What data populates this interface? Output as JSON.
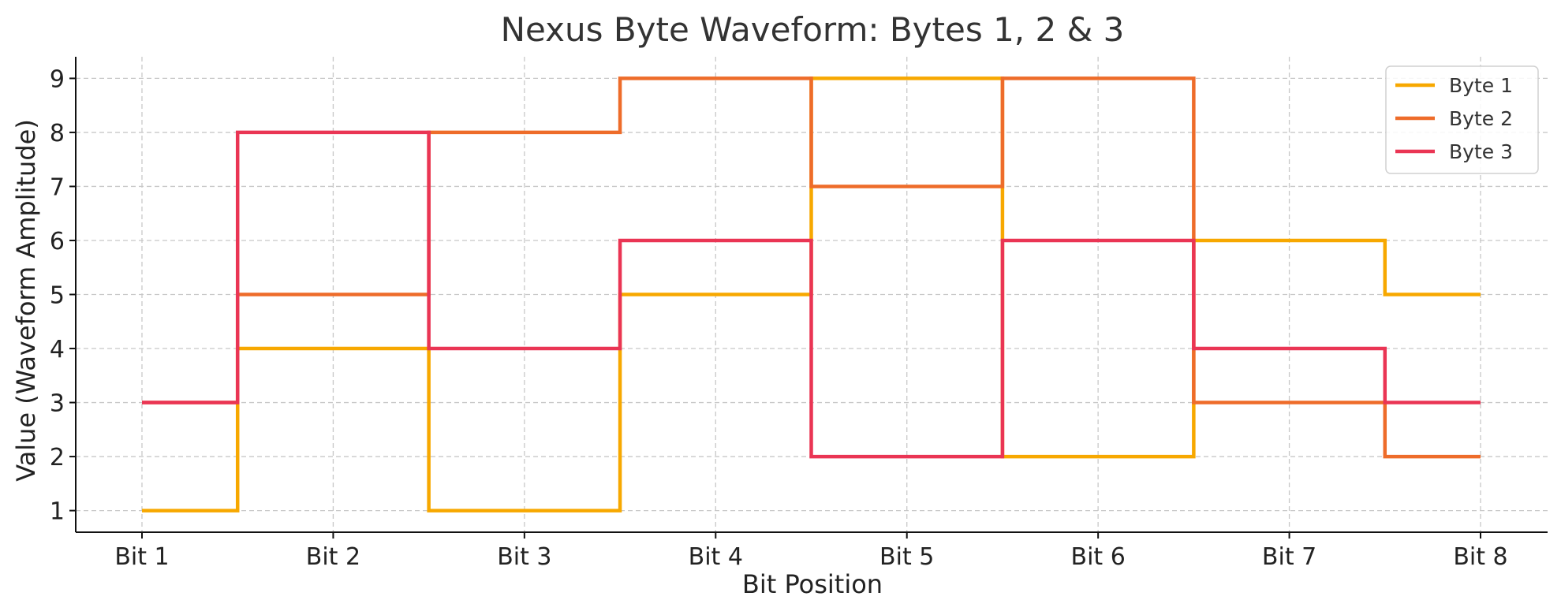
{
  "chart_data": {
    "type": "line",
    "step": "mid",
    "title": "Nexus Byte Waveform: Bytes 1, 2 & 3",
    "xlabel": "Bit Position",
    "ylabel": "Value (Waveform Amplitude)",
    "categories": [
      "Bit 1",
      "Bit 2",
      "Bit 3",
      "Bit 4",
      "Bit 5",
      "Bit 6",
      "Bit 7",
      "Bit 8"
    ],
    "yticks": [
      1,
      2,
      3,
      4,
      5,
      6,
      7,
      8,
      9
    ],
    "ylim": [
      0.6,
      9.4
    ],
    "grid": true,
    "legend_position": "top-right",
    "series": [
      {
        "name": "Byte 1",
        "color": "#F7A800",
        "values": [
          1,
          4,
          1,
          5,
          9,
          2,
          6,
          5
        ]
      },
      {
        "name": "Byte 2",
        "color": "#EE6C2A",
        "values": [
          3,
          5,
          8,
          9,
          7,
          9,
          3,
          2
        ]
      },
      {
        "name": "Byte 3",
        "color": "#EA3554",
        "values": [
          3,
          8,
          4,
          6,
          2,
          6,
          4,
          3
        ]
      }
    ]
  }
}
